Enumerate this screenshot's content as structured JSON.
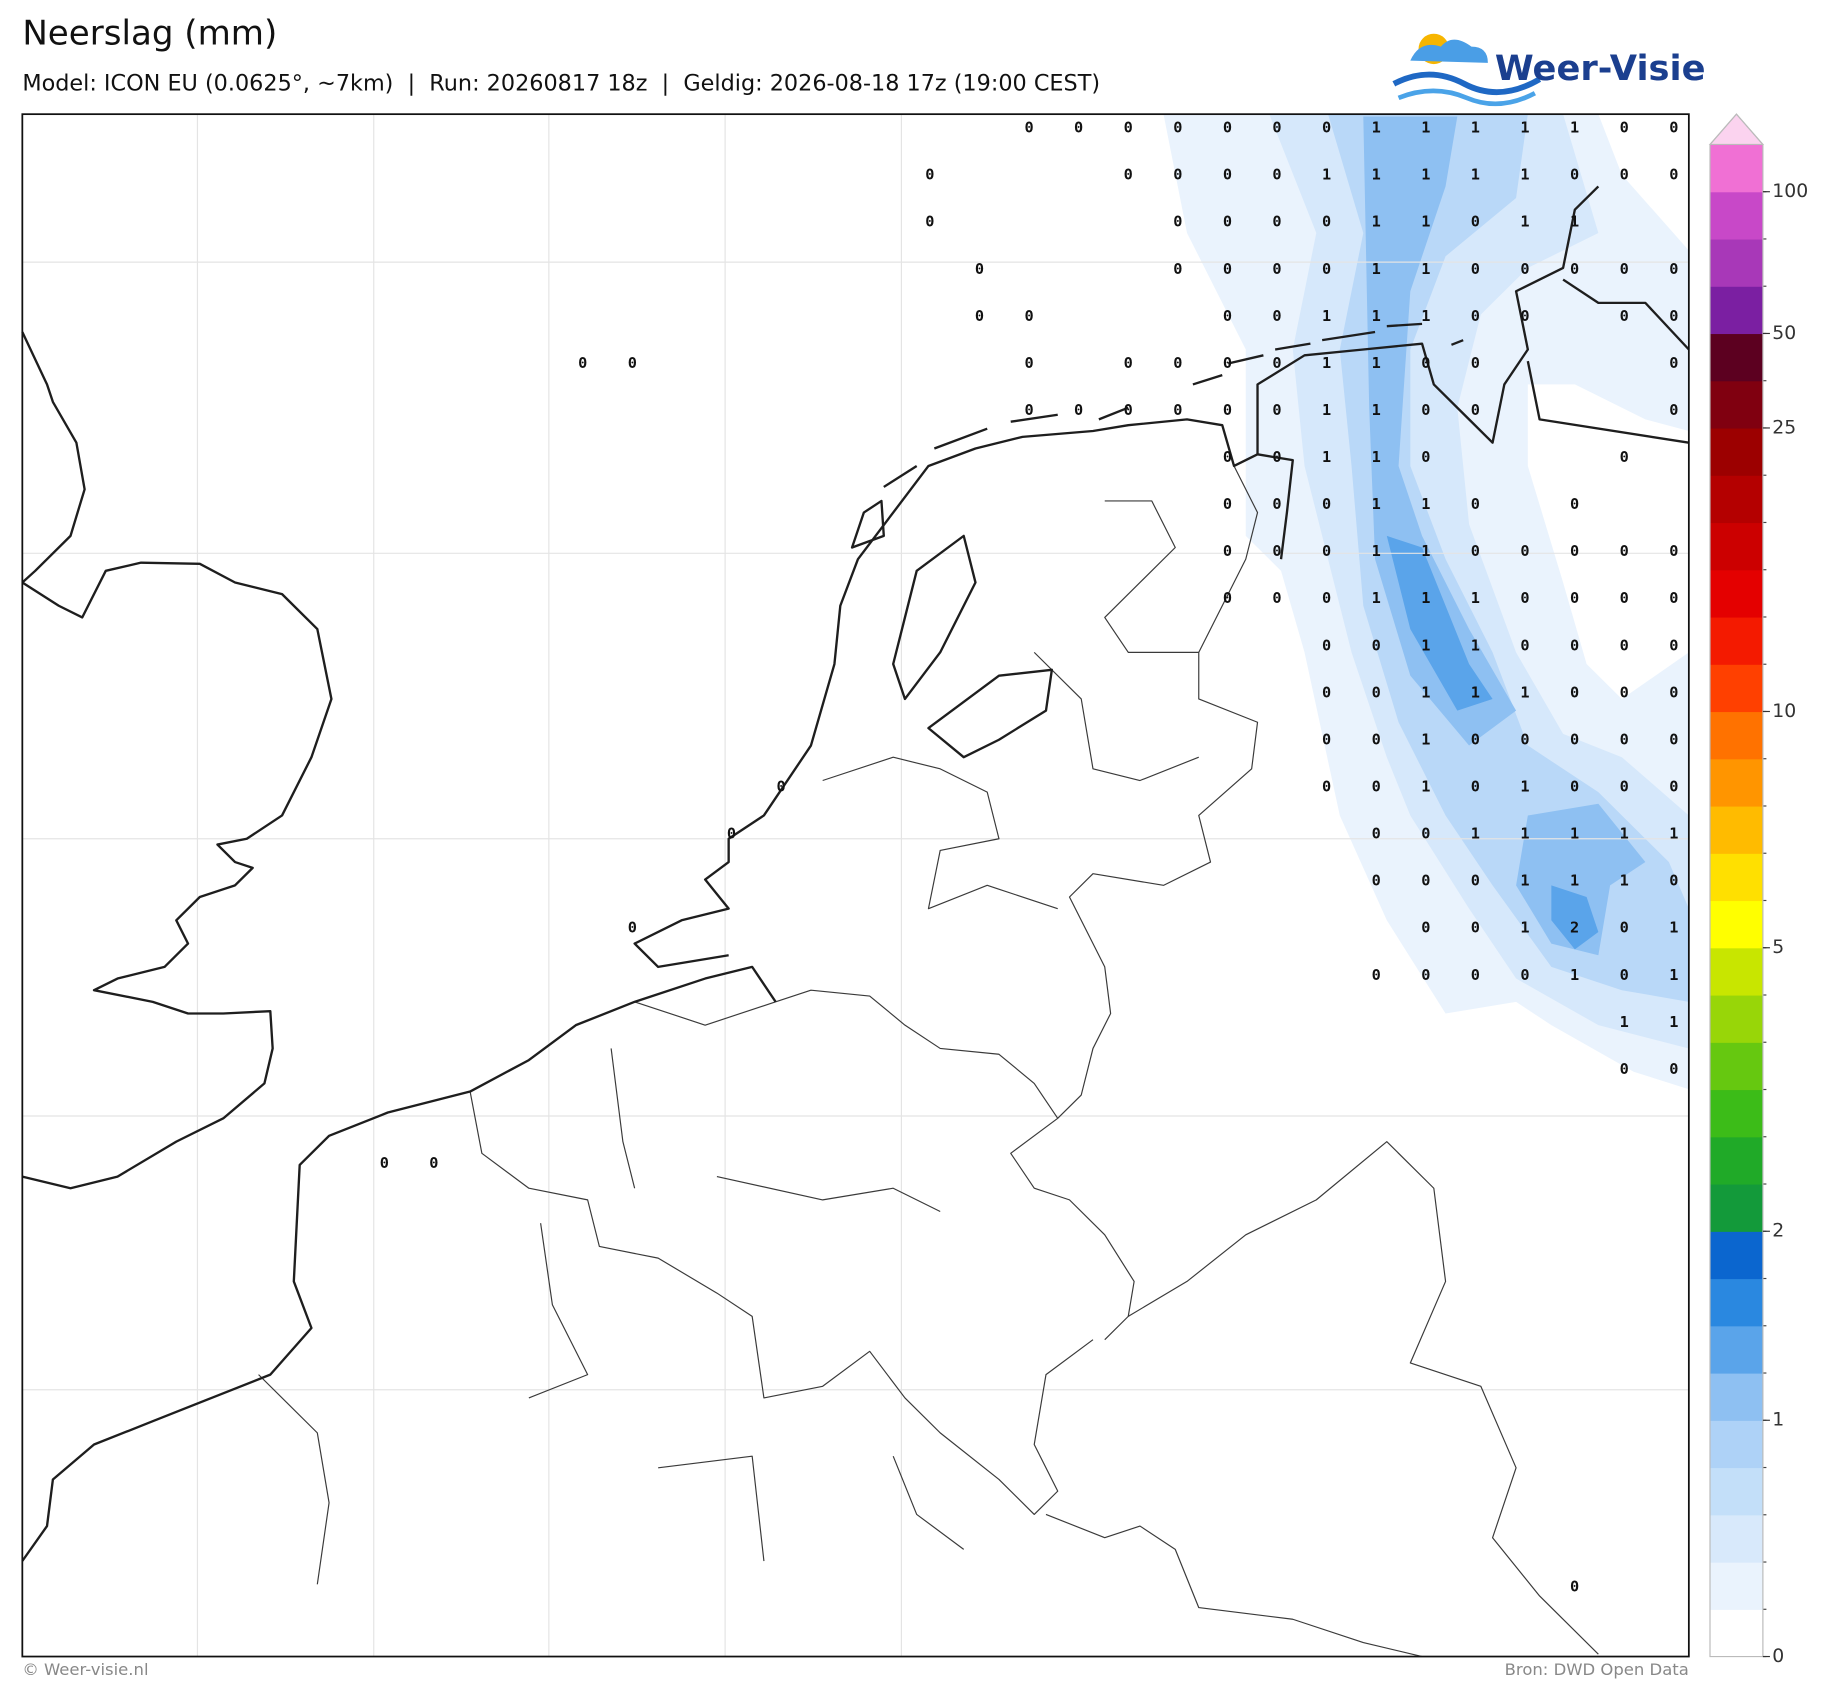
{
  "header": {
    "title": "Neerslag (mm)",
    "subtitle": "Model: ICON EU (0.0625°, ~7km)  |  Run: 20260817 18z  |  Geldig: 2026-08-18 17z (19:00 CEST)",
    "logo": "Weer-Visie"
  },
  "map": {
    "value_grid": [
      [
        null,
        null,
        null,
        null,
        null,
        null,
        null,
        null,
        null,
        null,
        null,
        null,
        null,
        0,
        0,
        0,
        0,
        0,
        0,
        0,
        1,
        1,
        1,
        1,
        1,
        0,
        0
      ],
      [
        null,
        null,
        null,
        null,
        null,
        null,
        null,
        null,
        null,
        null,
        null,
        0,
        null,
        null,
        null,
        0,
        0,
        0,
        0,
        1,
        1,
        1,
        1,
        1,
        0,
        0,
        0
      ],
      [
        null,
        null,
        null,
        null,
        null,
        null,
        null,
        null,
        null,
        null,
        null,
        0,
        null,
        null,
        null,
        null,
        0,
        0,
        0,
        0,
        1,
        1,
        0,
        1,
        1,
        null,
        null
      ],
      [
        null,
        null,
        null,
        null,
        null,
        null,
        null,
        null,
        null,
        null,
        null,
        null,
        0,
        null,
        null,
        null,
        0,
        0,
        0,
        0,
        1,
        1,
        0,
        0,
        0,
        0,
        0
      ],
      [
        null,
        null,
        null,
        null,
        null,
        null,
        null,
        null,
        null,
        null,
        null,
        null,
        0,
        0,
        null,
        null,
        null,
        0,
        0,
        1,
        1,
        1,
        0,
        0,
        null,
        0,
        0
      ],
      [
        null,
        null,
        null,
        null,
        0,
        0,
        null,
        null,
        null,
        null,
        null,
        null,
        null,
        0,
        null,
        0,
        0,
        0,
        0,
        1,
        1,
        0,
        0,
        null,
        null,
        null,
        0
      ],
      [
        null,
        null,
        null,
        null,
        null,
        null,
        null,
        null,
        null,
        null,
        null,
        null,
        null,
        0,
        0,
        0,
        0,
        0,
        0,
        1,
        1,
        0,
        0,
        null,
        null,
        null,
        0
      ],
      [
        null,
        null,
        null,
        null,
        null,
        null,
        null,
        null,
        null,
        null,
        null,
        null,
        null,
        null,
        null,
        null,
        null,
        0,
        0,
        1,
        1,
        0,
        null,
        null,
        null,
        0,
        null
      ],
      [
        null,
        null,
        null,
        null,
        null,
        null,
        null,
        null,
        null,
        null,
        null,
        null,
        null,
        null,
        null,
        null,
        null,
        0,
        0,
        0,
        1,
        1,
        0,
        null,
        0,
        null,
        null
      ],
      [
        null,
        null,
        null,
        null,
        null,
        null,
        null,
        null,
        null,
        null,
        null,
        null,
        null,
        null,
        null,
        null,
        null,
        0,
        0,
        0,
        1,
        1,
        0,
        0,
        0,
        0,
        0
      ],
      [
        null,
        null,
        null,
        null,
        null,
        null,
        null,
        null,
        null,
        null,
        null,
        null,
        null,
        null,
        null,
        null,
        null,
        0,
        0,
        0,
        1,
        1,
        1,
        0,
        0,
        0,
        0
      ],
      [
        null,
        null,
        null,
        null,
        null,
        null,
        null,
        null,
        null,
        null,
        null,
        null,
        null,
        null,
        null,
        null,
        null,
        null,
        null,
        0,
        0,
        1,
        1,
        0,
        0,
        0,
        0
      ],
      [
        null,
        null,
        null,
        null,
        null,
        null,
        null,
        null,
        null,
        null,
        null,
        null,
        null,
        null,
        null,
        null,
        null,
        null,
        null,
        0,
        0,
        1,
        1,
        1,
        0,
        0,
        0
      ],
      [
        null,
        null,
        null,
        null,
        null,
        null,
        null,
        null,
        null,
        null,
        null,
        null,
        null,
        null,
        null,
        null,
        null,
        null,
        null,
        0,
        0,
        1,
        0,
        0,
        0,
        0,
        0
      ],
      [
        null,
        null,
        null,
        null,
        null,
        null,
        null,
        null,
        0,
        null,
        null,
        null,
        null,
        null,
        null,
        null,
        null,
        null,
        null,
        0,
        0,
        1,
        0,
        1,
        0,
        0,
        0
      ],
      [
        null,
        null,
        null,
        null,
        null,
        null,
        null,
        0,
        null,
        null,
        null,
        null,
        null,
        null,
        null,
        null,
        null,
        null,
        null,
        null,
        0,
        0,
        1,
        1,
        1,
        1,
        1
      ],
      [
        null,
        null,
        null,
        null,
        null,
        null,
        null,
        null,
        null,
        null,
        null,
        null,
        null,
        null,
        null,
        null,
        null,
        null,
        null,
        null,
        0,
        0,
        0,
        1,
        1,
        1,
        0
      ],
      [
        null,
        null,
        null,
        null,
        null,
        0,
        null,
        null,
        null,
        null,
        null,
        null,
        null,
        null,
        null,
        null,
        null,
        null,
        null,
        null,
        null,
        0,
        0,
        1,
        2,
        0,
        1
      ],
      [
        null,
        null,
        null,
        null,
        null,
        null,
        null,
        null,
        null,
        null,
        null,
        null,
        null,
        null,
        null,
        null,
        null,
        null,
        null,
        null,
        0,
        0,
        0,
        0,
        1,
        0,
        1
      ],
      [
        null,
        null,
        null,
        null,
        null,
        null,
        null,
        null,
        null,
        null,
        null,
        null,
        null,
        null,
        null,
        null,
        null,
        null,
        null,
        null,
        null,
        null,
        null,
        null,
        null,
        1,
        1
      ],
      [
        null,
        null,
        null,
        null,
        null,
        null,
        null,
        null,
        null,
        null,
        null,
        null,
        null,
        null,
        null,
        null,
        null,
        null,
        null,
        null,
        null,
        null,
        null,
        null,
        null,
        0,
        0
      ],
      [
        null,
        null,
        null,
        null,
        null,
        null,
        null,
        null,
        null,
        null,
        null,
        null,
        null,
        null,
        null,
        null,
        null,
        null,
        null,
        null,
        null,
        null,
        null,
        null,
        null,
        null,
        null
      ],
      [
        0,
        0,
        null,
        null,
        null,
        null,
        null,
        null,
        null,
        null,
        null,
        null,
        null,
        null,
        null,
        null,
        null,
        null,
        null,
        null,
        null,
        null,
        null,
        null,
        null,
        null,
        null
      ],
      [
        null,
        null,
        null,
        null,
        null,
        null,
        null,
        null,
        null,
        null,
        null,
        null,
        null,
        null,
        null,
        null,
        null,
        null,
        null,
        null,
        null,
        null,
        null,
        null,
        null,
        null,
        null
      ],
      [
        null,
        null,
        null,
        null,
        null,
        null,
        null,
        null,
        null,
        null,
        null,
        null,
        null,
        null,
        null,
        null,
        null,
        null,
        null,
        null,
        null,
        null,
        null,
        null,
        null,
        null,
        null
      ],
      [
        null,
        null,
        null,
        null,
        null,
        null,
        null,
        null,
        null,
        null,
        null,
        null,
        null,
        null,
        null,
        null,
        null,
        null,
        null,
        null,
        null,
        null,
        null,
        null,
        null,
        null,
        null
      ],
      [
        null,
        null,
        null,
        null,
        null,
        null,
        null,
        null,
        null,
        null,
        null,
        null,
        null,
        null,
        null,
        null,
        null,
        null,
        null,
        null,
        null,
        null,
        null,
        null,
        null,
        null,
        null
      ],
      [
        null,
        null,
        null,
        null,
        null,
        null,
        null,
        null,
        null,
        null,
        null,
        null,
        null,
        null,
        null,
        null,
        null,
        null,
        null,
        null,
        null,
        null,
        null,
        null,
        null,
        null,
        null
      ],
      [
        null,
        null,
        null,
        null,
        null,
        null,
        null,
        null,
        null,
        null,
        null,
        null,
        null,
        null,
        null,
        null,
        null,
        null,
        null,
        null,
        null,
        null,
        null,
        null,
        null,
        null,
        null
      ],
      [
        null,
        null,
        null,
        null,
        null,
        null,
        null,
        null,
        null,
        null,
        null,
        null,
        null,
        null,
        null,
        null,
        null,
        null,
        null,
        null,
        null,
        null,
        null,
        null,
        null,
        null,
        null
      ],
      [
        null,
        null,
        null,
        null,
        null,
        null,
        null,
        null,
        null,
        null,
        null,
        null,
        null,
        null,
        null,
        null,
        null,
        null,
        null,
        null,
        null,
        null,
        null,
        null,
        null,
        null,
        null
      ],
      [
        null,
        null,
        null,
        null,
        null,
        null,
        null,
        null,
        null,
        null,
        null,
        null,
        null,
        null,
        null,
        null,
        null,
        null,
        null,
        null,
        null,
        null,
        null,
        null,
        0,
        null,
        null
      ]
    ]
  },
  "colorbar": {
    "levels": [
      0,
      0.1,
      0.25,
      0.5,
      0.75,
      1,
      1.25,
      1.5,
      1.75,
      2,
      2.5,
      3,
      3.5,
      4,
      4.5,
      5,
      6,
      7,
      8,
      9,
      10,
      12,
      14,
      16,
      18,
      20,
      25,
      35,
      50,
      70,
      85,
      100
    ],
    "colors": [
      "#ffffff",
      "#eaf3fd",
      "#d8e9fb",
      "#c3dff9",
      "#aed2f7",
      "#8ec0f2",
      "#5aa4ea",
      "#2a88e0",
      "#0b66cf",
      "#139a3a",
      "#20aa28",
      "#3cbc18",
      "#66c810",
      "#98d608",
      "#c8e600",
      "#ffff00",
      "#ffe000",
      "#ffbb00",
      "#ff9500",
      "#ff7200",
      "#ff4000",
      "#f41a00",
      "#e40000",
      "#cc0000",
      "#b40000",
      "#9c0000",
      "#800010",
      "#5c0020",
      "#7b1fa2",
      "#a838b8",
      "#c848c8",
      "#f070d4"
    ],
    "extend_color": "#fbd3ef",
    "ticks": [
      0,
      1,
      2,
      5,
      10,
      25,
      50,
      100
    ]
  },
  "footer": {
    "credit": "© Weer-visie.nl",
    "source": "Bron: DWD Open Data"
  }
}
